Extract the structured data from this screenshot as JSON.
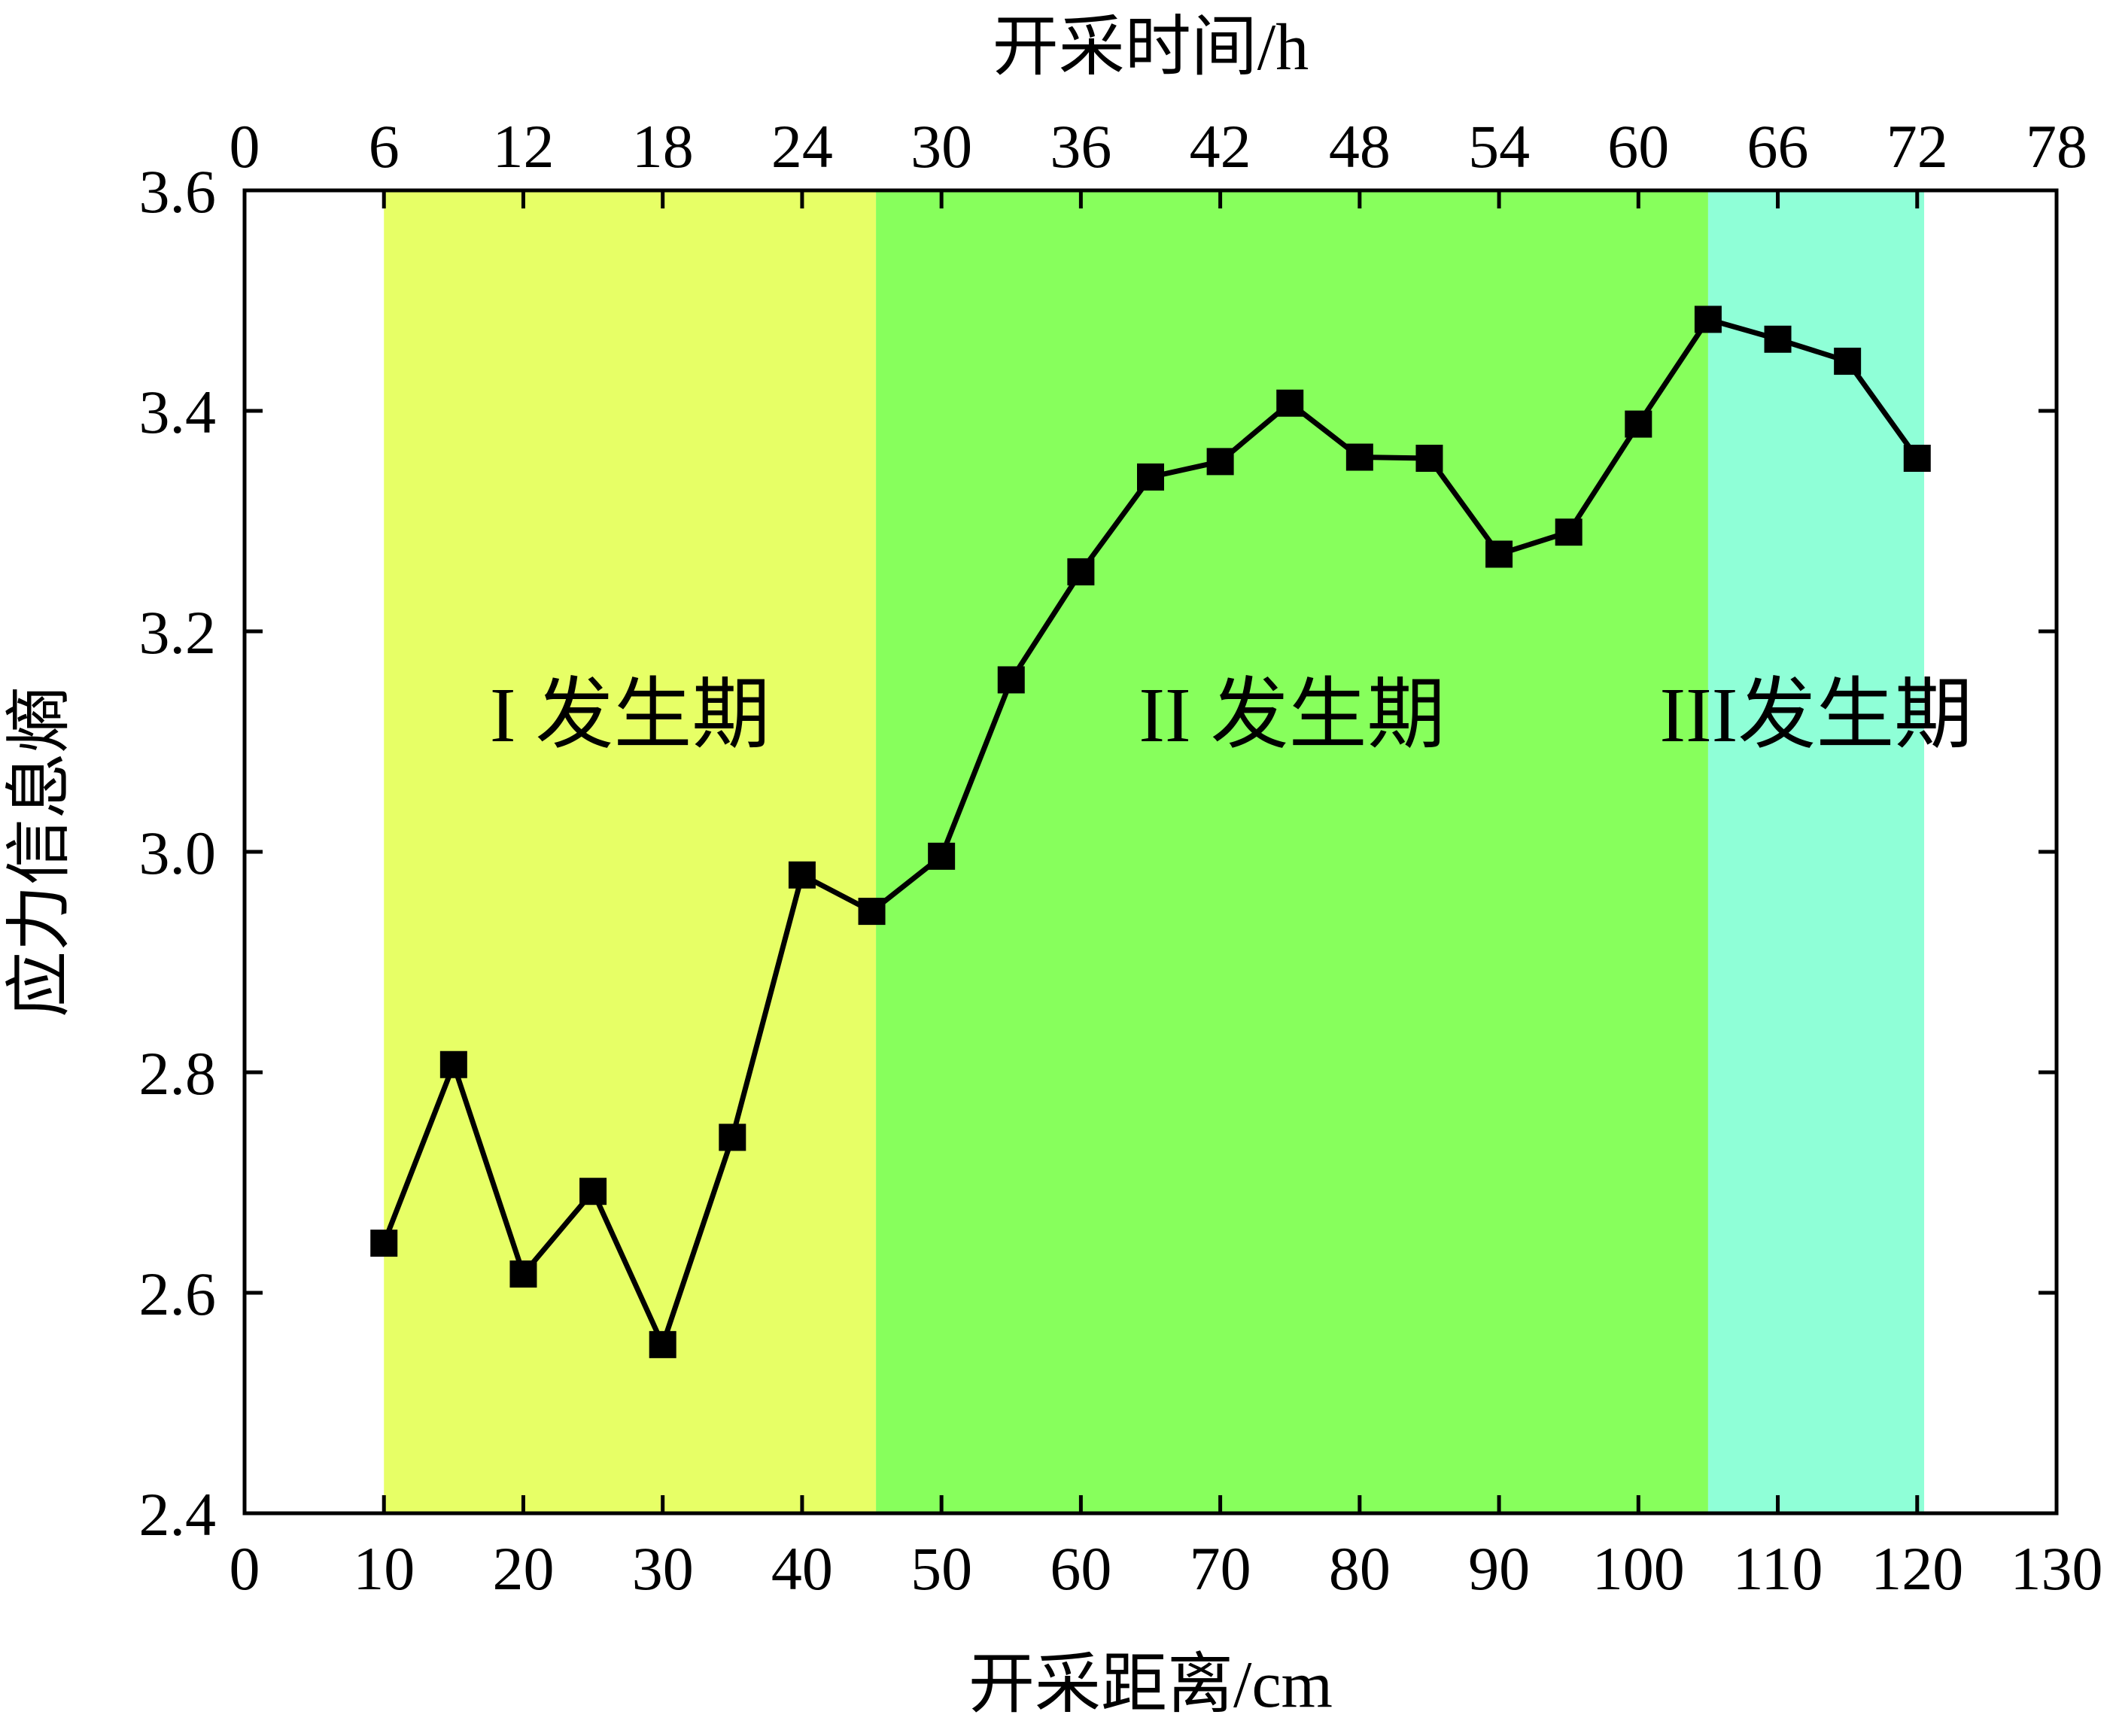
{
  "chart_data": {
    "type": "line",
    "xlabel": "开采距离/cm",
    "x2label": "开采时间/h",
    "ylabel": "应力信息熵",
    "xlim": [
      0,
      130
    ],
    "x2lim": [
      0,
      78
    ],
    "ylim": [
      2.4,
      3.6
    ],
    "xticks": [
      "0",
      "10",
      "20",
      "30",
      "40",
      "50",
      "60",
      "70",
      "80",
      "90",
      "100",
      "110",
      "120",
      "130"
    ],
    "x2ticks": [
      "0",
      "6",
      "12",
      "18",
      "24",
      "30",
      "36",
      "42",
      "48",
      "54",
      "60",
      "66",
      "72",
      "78"
    ],
    "yticks": [
      "2.4",
      "2.6",
      "2.8",
      "3.0",
      "3.2",
      "3.4",
      "3.6"
    ],
    "grid": false,
    "series": [
      {
        "x": [
          10,
          15,
          20,
          25,
          30,
          35,
          40,
          45,
          50,
          55,
          60,
          65,
          70,
          75,
          80,
          85,
          90,
          95,
          100,
          105,
          110,
          115,
          120
        ],
        "y": [
          2.645,
          2.807,
          2.617,
          2.692,
          2.553,
          2.741,
          2.979,
          2.946,
          2.996,
          3.156,
          3.254,
          3.34,
          3.354,
          3.407,
          3.358,
          3.357,
          3.27,
          3.29,
          3.388,
          3.483,
          3.465,
          3.445,
          3.357
        ],
        "marker": "square",
        "color": "#000000"
      }
    ],
    "regions": [
      {
        "label": "I 发生期",
        "x_start": 10,
        "x_end": 45.3,
        "color": "#e7ff66"
      },
      {
        "label": "II 发生期",
        "x_start": 45.3,
        "x_end": 105,
        "color": "#87ff5c"
      },
      {
        "label": "III发生期",
        "x_start": 105,
        "x_end": 120.5,
        "color": "#8fffd7"
      }
    ]
  }
}
